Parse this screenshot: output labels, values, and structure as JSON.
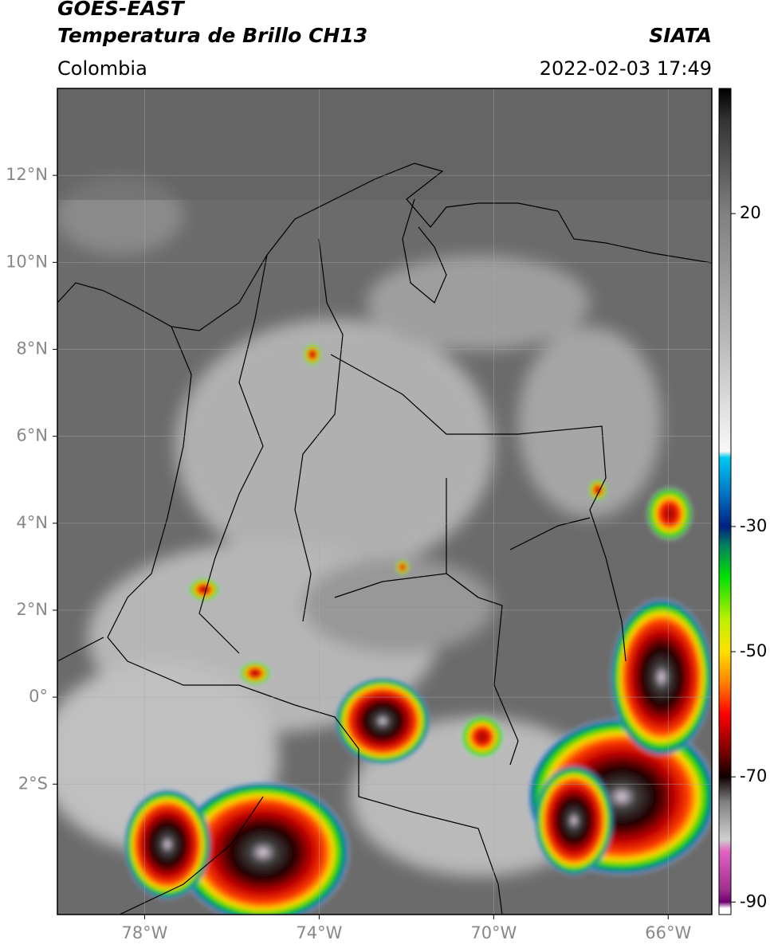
{
  "header": {
    "title": "GOES-EAST",
    "subtitle": "Temperatura de Brillo CH13",
    "source": "SIATA",
    "region": "Colombia",
    "datetime": "2022-02-03 17:49"
  },
  "map": {
    "xlim": [
      -80,
      -65
    ],
    "ylim": [
      -5,
      14
    ],
    "xticks": [
      {
        "value": -78,
        "label": "78°W"
      },
      {
        "value": -74,
        "label": "74°W"
      },
      {
        "value": -70,
        "label": "70°W"
      },
      {
        "value": -66,
        "label": "66°W"
      }
    ],
    "yticks": [
      {
        "value": 12,
        "label": "12°N"
      },
      {
        "value": 10,
        "label": "10°N"
      },
      {
        "value": 8,
        "label": "8°N"
      },
      {
        "value": 6,
        "label": "6°N"
      },
      {
        "value": 4,
        "label": "4°N"
      },
      {
        "value": 2,
        "label": "2°N"
      },
      {
        "value": 0,
        "label": "0°"
      },
      {
        "value": -2,
        "label": "2°S"
      }
    ],
    "grid": true
  },
  "colorbar": {
    "lim": [
      -92,
      40
    ],
    "ticks": [
      20,
      -30,
      -50,
      -70,
      -90
    ],
    "stops": [
      {
        "value": 40,
        "color": "#000000"
      },
      {
        "value": 35,
        "color": "#333333"
      },
      {
        "value": 20,
        "color": "#808080"
      },
      {
        "value": 0,
        "color": "#b8b8b8"
      },
      {
        "value": -18,
        "color": "#f8f8f8"
      },
      {
        "value": -19,
        "color": "#00c8f0"
      },
      {
        "value": -25,
        "color": "#0070c0"
      },
      {
        "value": -30,
        "color": "#002080"
      },
      {
        "value": -33,
        "color": "#008060"
      },
      {
        "value": -38,
        "color": "#00e000"
      },
      {
        "value": -45,
        "color": "#c0f000"
      },
      {
        "value": -50,
        "color": "#ffe000"
      },
      {
        "value": -55,
        "color": "#ff8000"
      },
      {
        "value": -60,
        "color": "#ff0000"
      },
      {
        "value": -65,
        "color": "#900000"
      },
      {
        "value": -70,
        "color": "#100000"
      },
      {
        "value": -74,
        "color": "#808080"
      },
      {
        "value": -80,
        "color": "#d0d0d0"
      },
      {
        "value": -82,
        "color": "#e060c0"
      },
      {
        "value": -88,
        "color": "#a03090"
      },
      {
        "value": -90,
        "color": "#700070"
      },
      {
        "value": -91,
        "color": "#ffffff"
      },
      {
        "value": -92,
        "color": "#ffffff"
      }
    ]
  }
}
